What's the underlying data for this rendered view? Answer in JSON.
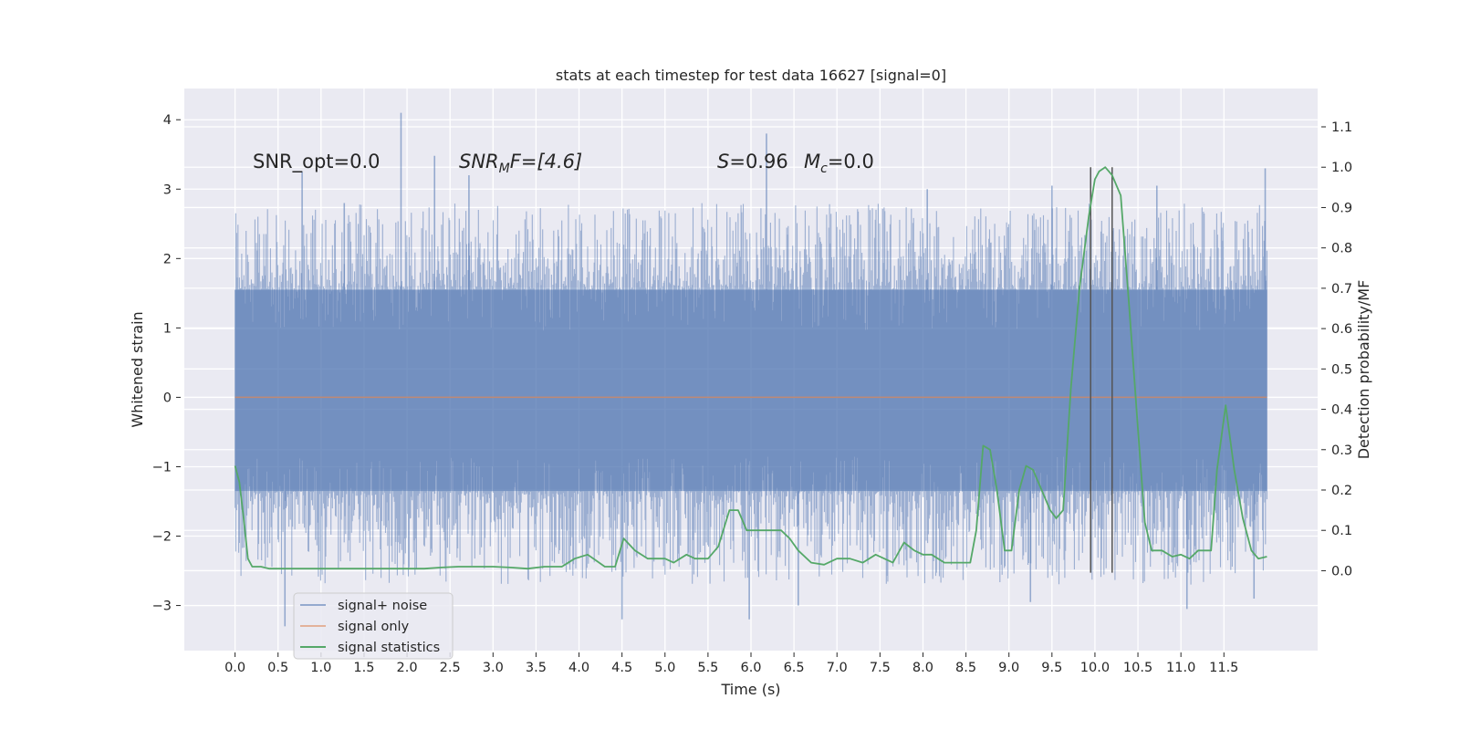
{
  "chart_data": {
    "type": "line",
    "title": "stats at each timestep for test data 16627 [signal=0]",
    "xlabel": "Time (s)",
    "ylabel": "Whitened strain",
    "ylabel_right": "Detection probability/MF",
    "xlim": [
      -0.59,
      12.59
    ],
    "ylim": [
      -3.65,
      4.45
    ],
    "ylim_right": [
      -0.198,
      1.195
    ],
    "x_ticks": [
      "0.0",
      "0.5",
      "1.0",
      "1.5",
      "2.0",
      "2.5",
      "3.0",
      "3.5",
      "4.0",
      "4.5",
      "5.0",
      "5.5",
      "6.0",
      "6.5",
      "7.0",
      "7.5",
      "8.0",
      "8.5",
      "9.0",
      "9.5",
      "10.0",
      "10.5",
      "11.0",
      "11.5"
    ],
    "y_ticks": [
      "−3",
      "−2",
      "−1",
      "0",
      "1",
      "2",
      "3",
      "4"
    ],
    "y_ticks_right": [
      "0.0",
      "0.1",
      "0.2",
      "0.3",
      "0.4",
      "0.5",
      "0.6",
      "0.7",
      "0.8",
      "0.9",
      "1.0",
      "1.1"
    ],
    "grid": true,
    "legend_position": "lower left",
    "annotations": {
      "snr_opt": "SNR_opt=0.0",
      "snr_mf": "SNR",
      "snr_mf_sub": "M",
      "snr_mf_tail": "F=[4.6]",
      "s_label": "S",
      "s_value": "=0.96",
      "mc_label": "M",
      "mc_sub": "c",
      "mc_value": "=0.0"
    },
    "series": [
      {
        "name": "signal+ noise",
        "color": "#4c72b0",
        "x_range": [
          0.0,
          12.0
        ],
        "band": {
          "lower": -1.35,
          "upper": 1.55
        },
        "envelope_min": -3.3,
        "envelope_max": 4.1,
        "peaks": [
          {
            "x": 1.93,
            "y": 4.1
          },
          {
            "x": 6.18,
            "y": 3.8
          },
          {
            "x": 2.32,
            "y": 3.48
          },
          {
            "x": 11.98,
            "y": 3.3
          },
          {
            "x": 0.78,
            "y": 3.25
          },
          {
            "x": 2.72,
            "y": 3.2
          },
          {
            "x": 1.27,
            "y": 2.8
          },
          {
            "x": 8.05,
            "y": 3.0
          },
          {
            "x": 9.5,
            "y": 3.05
          },
          {
            "x": 10.72,
            "y": 3.05
          },
          {
            "x": 0.58,
            "y": -3.3
          },
          {
            "x": 5.98,
            "y": -3.2
          },
          {
            "x": 4.5,
            "y": -3.2
          },
          {
            "x": 6.55,
            "y": -3.0
          },
          {
            "x": 9.25,
            "y": -2.95
          },
          {
            "x": 11.07,
            "y": -3.05
          },
          {
            "x": 11.85,
            "y": -2.9
          }
        ]
      },
      {
        "name": "signal only",
        "color": "#dd8452",
        "x": [
          0.0,
          12.0
        ],
        "y": [
          0.0,
          0.0
        ]
      },
      {
        "name": "signal statistics",
        "color": "#55a868",
        "axis": "right",
        "x": [
          0.0,
          0.05,
          0.1,
          0.15,
          0.2,
          0.3,
          0.4,
          0.5,
          0.6,
          0.8,
          1.0,
          1.2,
          1.4,
          1.6,
          1.8,
          2.0,
          2.2,
          2.4,
          2.6,
          2.8,
          3.0,
          3.2,
          3.4,
          3.6,
          3.8,
          3.95,
          4.1,
          4.2,
          4.3,
          4.42,
          4.52,
          4.65,
          4.8,
          5.0,
          5.1,
          5.25,
          5.35,
          5.5,
          5.62,
          5.75,
          5.85,
          5.95,
          6.05,
          6.15,
          6.25,
          6.35,
          6.45,
          6.55,
          6.7,
          6.85,
          7.0,
          7.15,
          7.3,
          7.45,
          7.55,
          7.65,
          7.78,
          7.9,
          8.0,
          8.1,
          8.25,
          8.42,
          8.55,
          8.62,
          8.7,
          8.78,
          8.86,
          8.95,
          9.03,
          9.12,
          9.2,
          9.28,
          9.38,
          9.48,
          9.55,
          9.63,
          9.72,
          9.82,
          9.93,
          10.0,
          10.05,
          10.12,
          10.2,
          10.3,
          10.4,
          10.5,
          10.58,
          10.66,
          10.78,
          10.9,
          11.0,
          11.1,
          11.2,
          11.28,
          11.35,
          11.42,
          11.52,
          11.62,
          11.72,
          11.82,
          11.9,
          12.0
        ],
        "y": [
          0.26,
          0.22,
          0.13,
          0.03,
          0.01,
          0.01,
          0.005,
          0.005,
          0.005,
          0.005,
          0.005,
          0.005,
          0.005,
          0.005,
          0.005,
          0.005,
          0.005,
          0.008,
          0.01,
          0.01,
          0.01,
          0.008,
          0.005,
          0.01,
          0.01,
          0.03,
          0.04,
          0.025,
          0.01,
          0.01,
          0.08,
          0.05,
          0.03,
          0.03,
          0.02,
          0.04,
          0.03,
          0.03,
          0.06,
          0.15,
          0.15,
          0.1,
          0.1,
          0.1,
          0.1,
          0.1,
          0.08,
          0.05,
          0.02,
          0.015,
          0.03,
          0.03,
          0.02,
          0.04,
          0.03,
          0.02,
          0.07,
          0.05,
          0.04,
          0.04,
          0.02,
          0.02,
          0.02,
          0.1,
          0.31,
          0.3,
          0.2,
          0.05,
          0.05,
          0.2,
          0.26,
          0.25,
          0.2,
          0.15,
          0.13,
          0.15,
          0.45,
          0.7,
          0.88,
          0.97,
          0.99,
          1.0,
          0.98,
          0.93,
          0.65,
          0.35,
          0.12,
          0.05,
          0.05,
          0.035,
          0.04,
          0.03,
          0.05,
          0.05,
          0.05,
          0.25,
          0.41,
          0.25,
          0.13,
          0.05,
          0.03,
          0.035
        ]
      }
    ],
    "vertical_markers": {
      "color": "#555555",
      "x": [
        9.95,
        10.2
      ],
      "y_range": [
        -0.005,
        1.0
      ]
    }
  },
  "legend": {
    "items": [
      "signal+ noise",
      "signal only",
      "signal statistics"
    ]
  }
}
